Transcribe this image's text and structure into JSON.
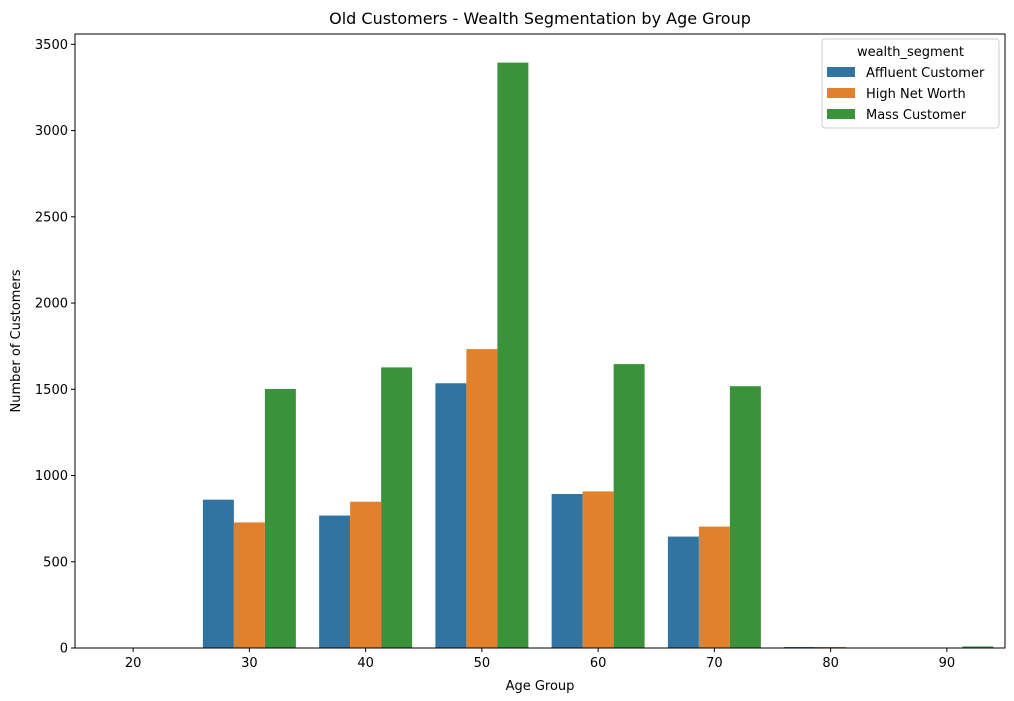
{
  "chart_data": {
    "type": "bar",
    "title": "Old Customers - Wealth Segmentation by Age Group",
    "xlabel": "Age Group",
    "ylabel": "Number of Customers",
    "categories": [
      "20",
      "30",
      "40",
      "50",
      "60",
      "70",
      "80",
      "90"
    ],
    "ylim": [
      0,
      3560
    ],
    "yticks": [
      0,
      500,
      1000,
      1500,
      2000,
      2500,
      3000,
      3500
    ],
    "legend": {
      "title": "wealth_segment",
      "placement": "top-right"
    },
    "series": [
      {
        "name": "Affluent Customer",
        "color": "#3274a1",
        "values": [
          0,
          860,
          768,
          1535,
          893,
          646,
          6,
          0
        ]
      },
      {
        "name": "High Net Worth",
        "color": "#e1812c",
        "values": [
          0,
          728,
          848,
          1733,
          908,
          704,
          6,
          0
        ]
      },
      {
        "name": "Mass Customer",
        "color": "#3a923a",
        "values": [
          0,
          1502,
          1627,
          3394,
          1646,
          1518,
          0,
          9
        ]
      }
    ],
    "grid": false
  }
}
